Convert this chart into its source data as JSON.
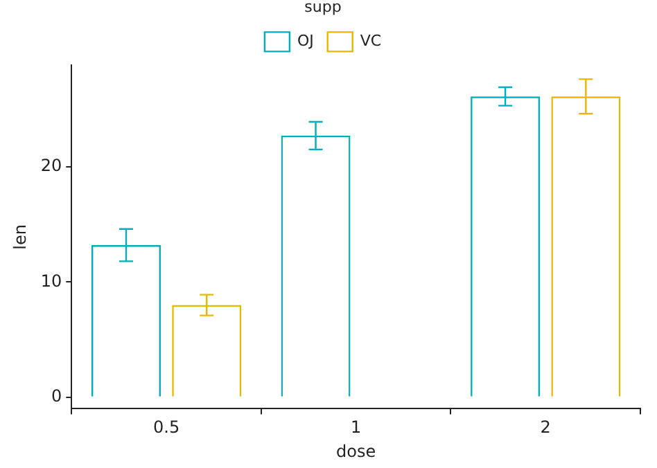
{
  "chart_data": {
    "type": "bar",
    "xlabel": "dose",
    "ylabel": "len",
    "legend_title": "supp",
    "legend": "top",
    "categories": [
      "0.5",
      "1",
      "2"
    ],
    "series": [
      {
        "name": "OJ",
        "color": "#00afbb",
        "values": [
          13.2,
          22.7,
          26.1
        ],
        "errors": [
          1.4,
          1.2,
          0.8
        ]
      },
      {
        "name": "VC",
        "color": "#e7b800",
        "values": [
          8,
          null,
          26.1
        ],
        "errors": [
          0.9,
          null,
          1.5
        ]
      }
    ],
    "ylim": [
      -1,
      28.8
    ],
    "yticks": [
      0,
      10,
      20
    ],
    "grid": false
  }
}
